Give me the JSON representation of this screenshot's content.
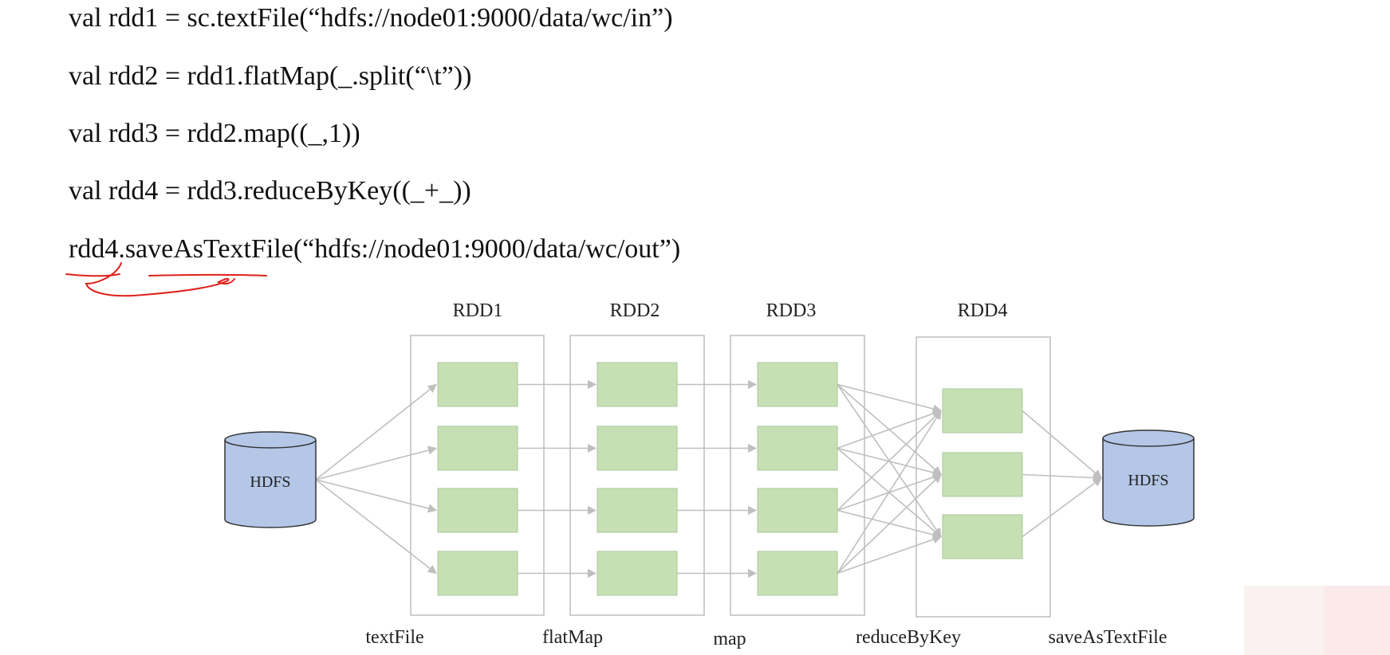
{
  "code": {
    "line1": "val rdd1 = sc.textFile(“hdfs://node01:9000/data/wc/in”)",
    "line2": "val rdd2 = rdd1.flatMap(_.split(“\\t”))",
    "line3": "val rdd3 = rdd2.map((_,1))",
    "line4": "val rdd4 = rdd3.reduceByKey((_+_))",
    "line5": "rdd4.saveAsTextFile(“hdfs://node01:9000/data/wc/out”)"
  },
  "diagram": {
    "source_label": "HDFS",
    "sink_label": "HDFS",
    "rdds": [
      {
        "label": "RDD1",
        "partitions": 4
      },
      {
        "label": "RDD2",
        "partitions": 4
      },
      {
        "label": "RDD3",
        "partitions": 4
      },
      {
        "label": "RDD4",
        "partitions": 3
      }
    ],
    "operations": [
      "textFile",
      "flatMap",
      "map",
      "reduceByKey",
      "saveAsTextFile"
    ]
  },
  "colors": {
    "partition_fill": "#c6e0b4",
    "partition_stroke": "#a9c79a",
    "hdfs_fill": "#b4c7e7",
    "hdfs_stroke": "#333333",
    "arrow": "#bfbfbf",
    "annotation": "#e0201a"
  }
}
